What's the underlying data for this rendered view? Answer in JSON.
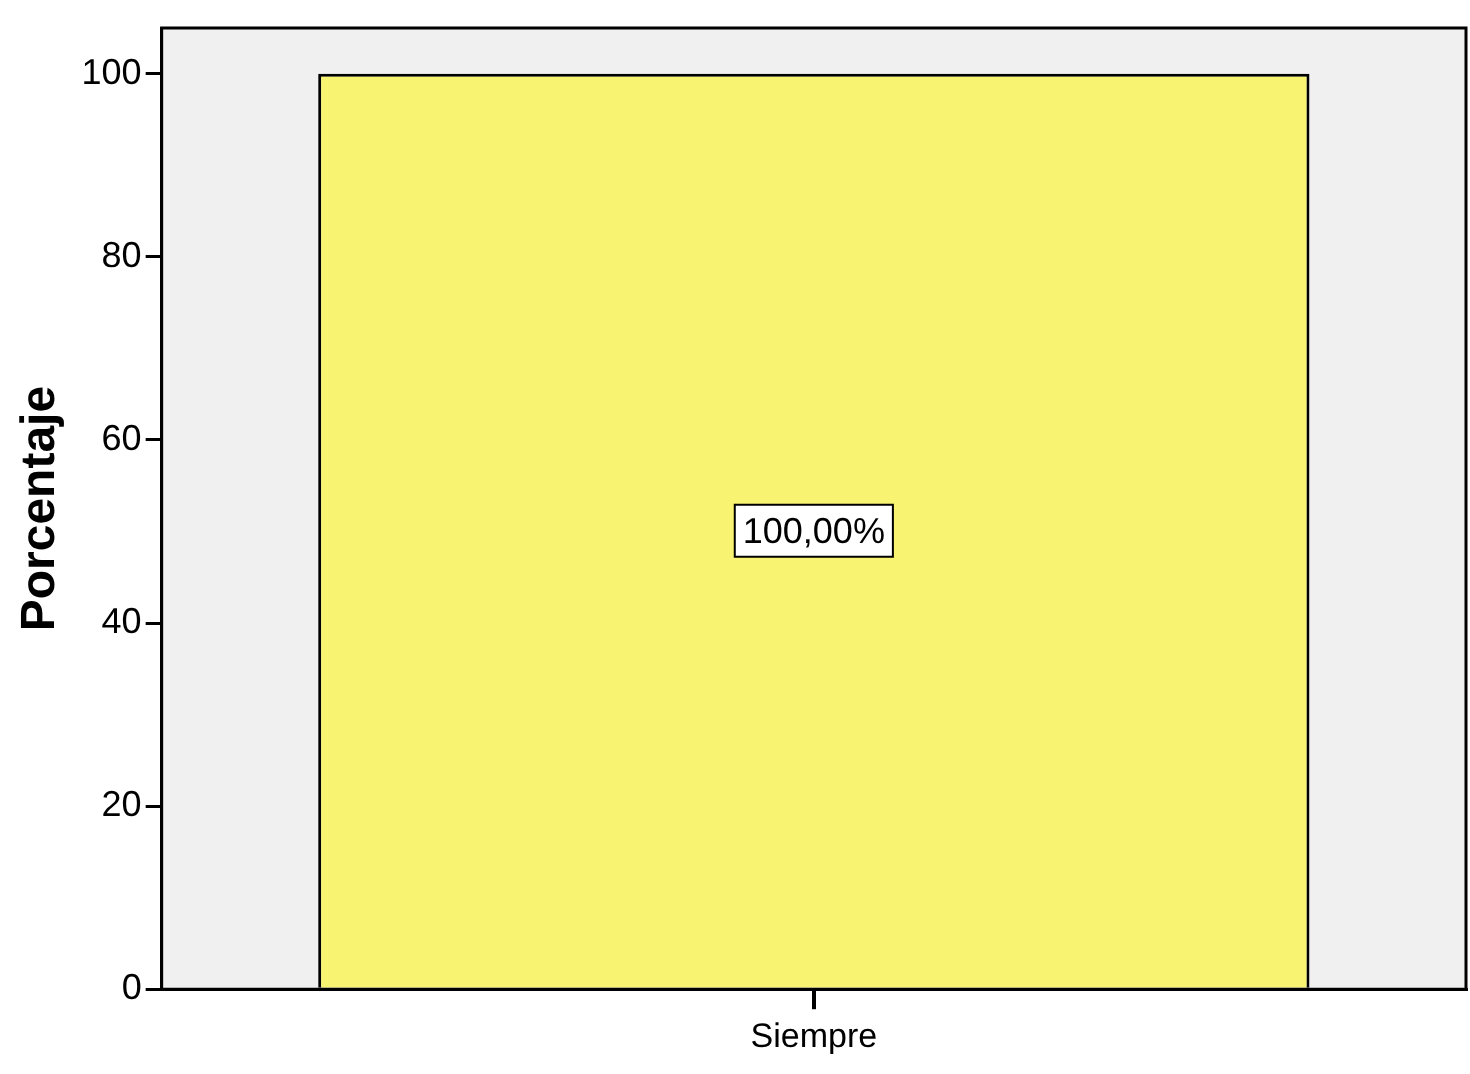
{
  "chart_data": {
    "type": "bar",
    "ylabel": "Porcentaje",
    "categories": [
      "Siempre"
    ],
    "values": [
      100
    ],
    "value_labels": [
      "100,00%"
    ],
    "color": "#f8f371",
    "ylim": [
      0,
      105
    ],
    "yticks": [
      0,
      20,
      40,
      60,
      80,
      100
    ],
    "grid": false,
    "legend": false
  }
}
